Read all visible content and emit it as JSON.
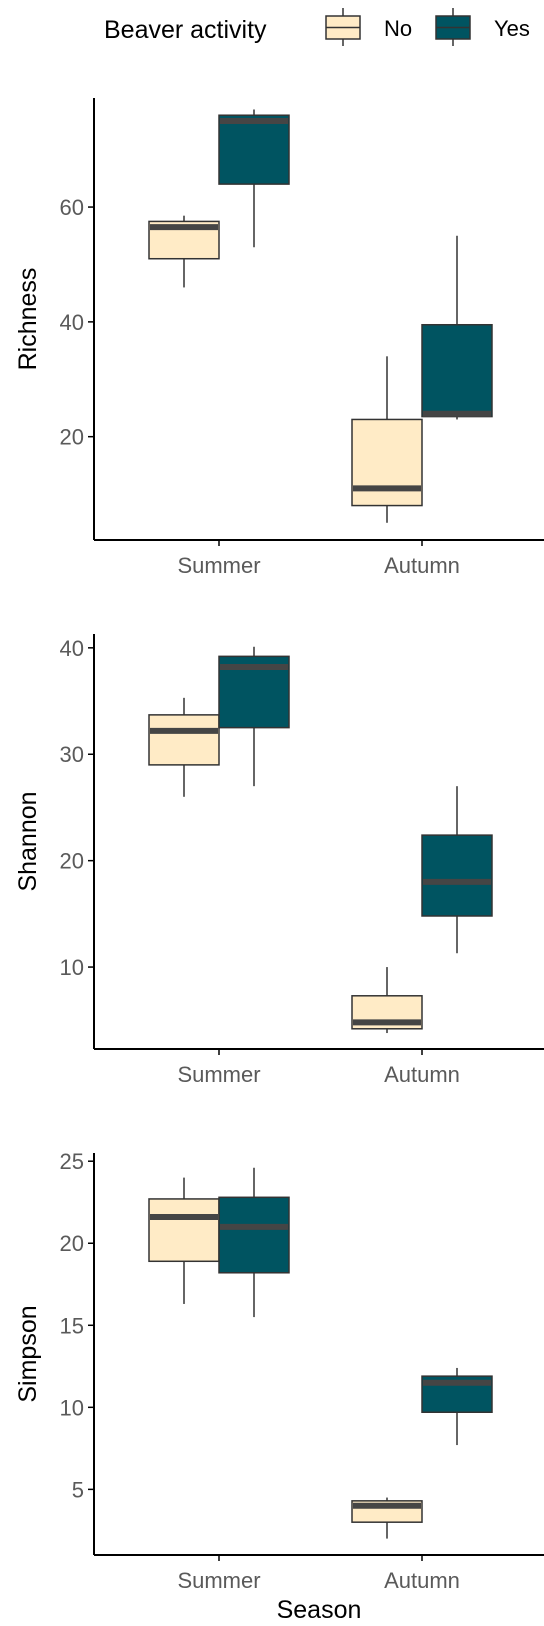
{
  "colors": {
    "No": "#FFEBC6",
    "Yes": "#005461",
    "outline": "#333333",
    "median": "#454545",
    "axis": "#000000"
  },
  "legend": {
    "title": "Beaver activity",
    "entries": [
      {
        "label": "No",
        "color": "#FFEBC6"
      },
      {
        "label": "Yes",
        "color": "#005461"
      }
    ]
  },
  "chart_data": [
    {
      "type": "boxplot",
      "ylabel": "Richness",
      "xlabel": "",
      "categories": [
        "Summer",
        "Autumn"
      ],
      "ylim": [
        2,
        79
      ],
      "yticks": [
        20,
        40,
        60
      ],
      "series": [
        {
          "name": "No",
          "boxes": [
            {
              "min": 46,
              "q1": 51,
              "median": 56.5,
              "q3": 57.5,
              "max": 58.5
            },
            {
              "min": 5,
              "q1": 8,
              "median": 11,
              "q3": 23,
              "max": 34
            }
          ]
        },
        {
          "name": "Yes",
          "boxes": [
            {
              "min": 53,
              "q1": 64,
              "median": 75,
              "q3": 76,
              "max": 77
            },
            {
              "min": 23,
              "q1": 23.5,
              "median": 24,
              "q3": 39.5,
              "max": 55
            }
          ]
        }
      ]
    },
    {
      "type": "boxplot",
      "ylabel": "Shannon",
      "xlabel": "",
      "categories": [
        "Summer",
        "Autumn"
      ],
      "ylim": [
        2.3,
        41.3
      ],
      "yticks": [
        10,
        20,
        30,
        40
      ],
      "series": [
        {
          "name": "No",
          "boxes": [
            {
              "min": 26,
              "q1": 29,
              "median": 32.2,
              "q3": 33.7,
              "max": 35.3
            },
            {
              "min": 3.8,
              "q1": 4.2,
              "median": 4.8,
              "q3": 7.3,
              "max": 10
            }
          ]
        },
        {
          "name": "Yes",
          "boxes": [
            {
              "min": 27,
              "q1": 32.5,
              "median": 38.2,
              "q3": 39.2,
              "max": 40.1
            },
            {
              "min": 11.3,
              "q1": 14.8,
              "median": 18,
              "q3": 22.4,
              "max": 27
            }
          ]
        }
      ]
    },
    {
      "type": "boxplot",
      "ylabel": "Simpson",
      "xlabel": "Season",
      "categories": [
        "Summer",
        "Autumn"
      ],
      "ylim": [
        1,
        25.5
      ],
      "yticks": [
        5,
        10,
        15,
        20,
        25
      ],
      "series": [
        {
          "name": "No",
          "boxes": [
            {
              "min": 16.3,
              "q1": 18.9,
              "median": 21.6,
              "q3": 22.7,
              "max": 24
            },
            {
              "min": 2,
              "q1": 3,
              "median": 4,
              "q3": 4.3,
              "max": 4.5
            }
          ]
        },
        {
          "name": "Yes",
          "boxes": [
            {
              "min": 15.5,
              "q1": 18.2,
              "median": 21,
              "q3": 22.8,
              "max": 24.6
            },
            {
              "min": 7.7,
              "q1": 9.7,
              "median": 11.5,
              "q3": 11.9,
              "max": 12.4
            }
          ]
        }
      ]
    }
  ]
}
